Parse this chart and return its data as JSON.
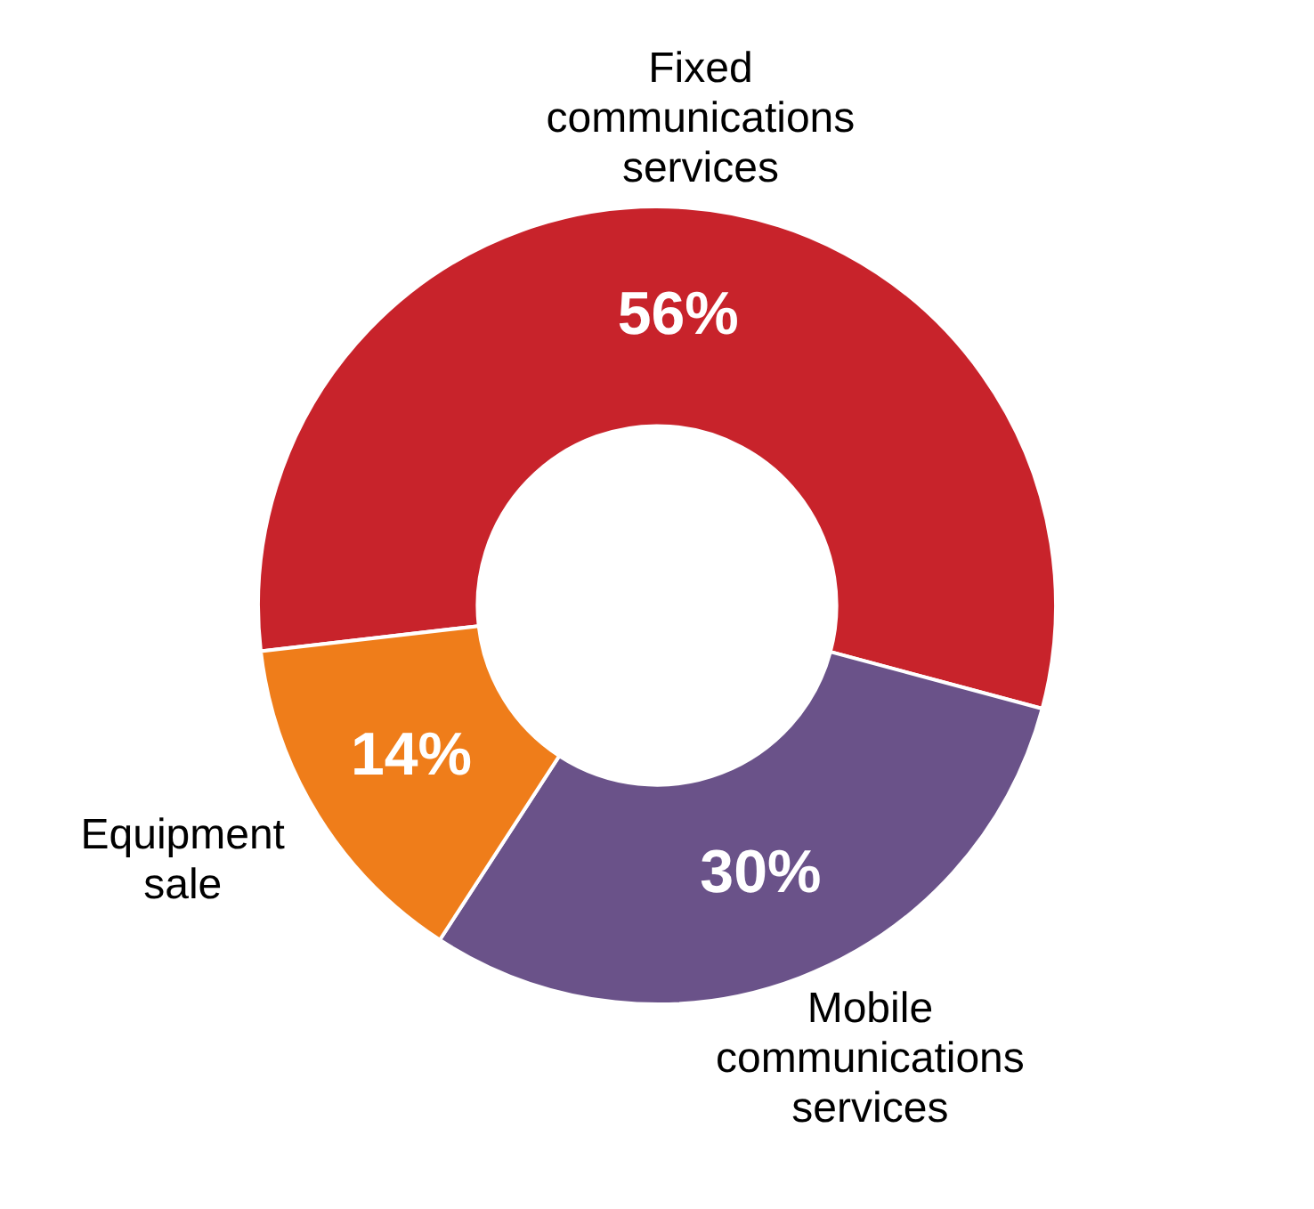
{
  "chart_data": {
    "type": "donut",
    "categories": [
      "Fixed communications services",
      "Mobile communications services",
      "Equipment sale"
    ],
    "values": [
      56,
      30,
      14
    ],
    "colors": [
      "#c8232b",
      "#6a5289",
      "#ef7d1a"
    ],
    "value_labels": [
      "56%",
      "30%",
      "14%"
    ],
    "legend": false
  }
}
